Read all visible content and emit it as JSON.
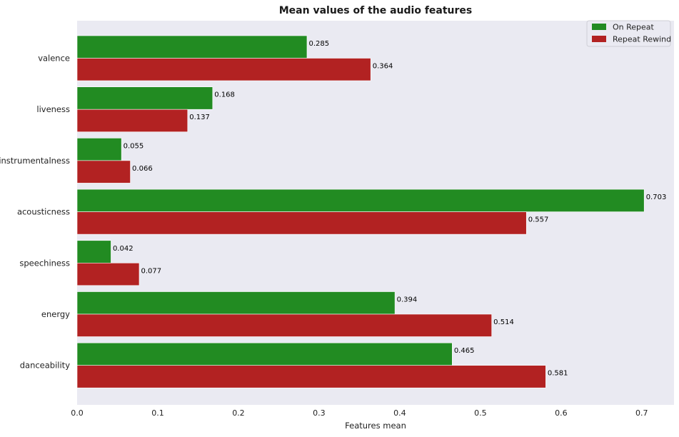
{
  "chart_data": {
    "type": "bar",
    "orientation": "horizontal",
    "title": "Mean values of the audio features",
    "xlabel": "Features mean",
    "ylabel": "",
    "xlim": [
      0,
      0.74
    ],
    "xticks": [
      "0.0",
      "0.1",
      "0.2",
      "0.3",
      "0.4",
      "0.5",
      "0.6",
      "0.7"
    ],
    "xtick_values": [
      0,
      0.1,
      0.2,
      0.3,
      0.4,
      0.5,
      0.6,
      0.7
    ],
    "categories": [
      "valence",
      "liveness",
      "instrumentalness",
      "acousticness",
      "speechiness",
      "energy",
      "danceability"
    ],
    "series": [
      {
        "name": "On Repeat",
        "color": "#228b22",
        "values": [
          0.285,
          0.168,
          0.055,
          0.703,
          0.042,
          0.394,
          0.465
        ],
        "labels": [
          "0.285",
          "0.168",
          "0.055",
          "0.703",
          "0.042",
          "0.394",
          "0.465"
        ]
      },
      {
        "name": "Repeat Rewind",
        "color": "#b22222",
        "values": [
          0.364,
          0.137,
          0.066,
          0.557,
          0.077,
          0.514,
          0.581
        ],
        "labels": [
          "0.364",
          "0.137",
          "0.066",
          "0.557",
          "0.077",
          "0.514",
          "0.581"
        ]
      }
    ],
    "grid": false,
    "legend_position": "top-right",
    "background_color": "#eaeaf2"
  }
}
